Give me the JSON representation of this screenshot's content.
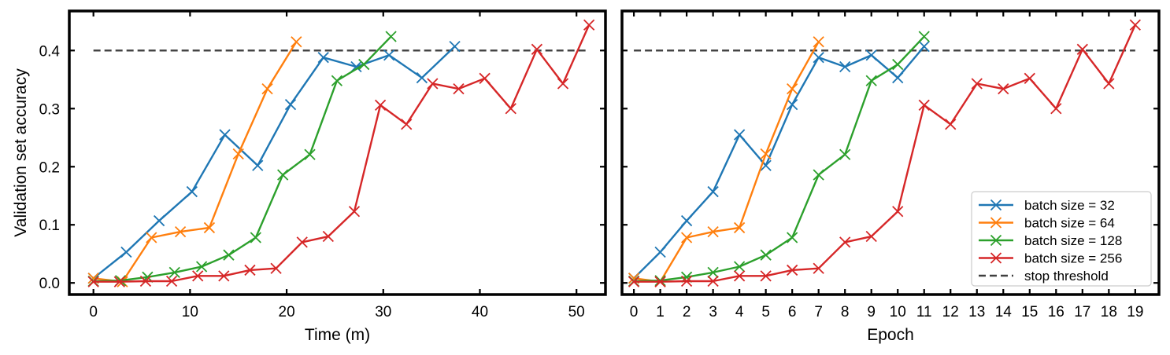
{
  "chart_data": [
    {
      "type": "line",
      "xlabel": "Time (m)",
      "ylabel": "Validation set accuracy",
      "xlim": [
        -2.5,
        53
      ],
      "ylim": [
        -0.02,
        0.468
      ],
      "xticks": [
        0,
        10,
        20,
        30,
        40,
        50
      ],
      "yticks": [
        0.0,
        0.1,
        0.2,
        0.3,
        0.4
      ],
      "threshold": 0.4,
      "threshold_range": [
        0,
        51
      ],
      "series": [
        {
          "name": "batch size = 32",
          "color": "#1f77b4",
          "x": [
            0,
            3.4,
            6.8,
            10.2,
            13.6,
            17.0,
            20.4,
            23.8,
            27.2,
            30.6,
            34.0,
            37.4
          ],
          "y": [
            0.008,
            0.053,
            0.107,
            0.157,
            0.255,
            0.202,
            0.307,
            0.388,
            0.372,
            0.392,
            0.353,
            0.407
          ]
        },
        {
          "name": "batch size = 64",
          "color": "#ff7f0e",
          "x": [
            0,
            3.0,
            6.0,
            9.0,
            12.0,
            15.0,
            18.0,
            21.0
          ],
          "y": [
            0.008,
            0.002,
            0.078,
            0.088,
            0.095,
            0.222,
            0.334,
            0.415
          ]
        },
        {
          "name": "batch size = 128",
          "color": "#2ca02c",
          "x": [
            0,
            2.8,
            5.6,
            8.4,
            11.2,
            14.0,
            16.8,
            19.6,
            22.4,
            25.2,
            28.0,
            30.8
          ],
          "y": [
            0.003,
            0.004,
            0.01,
            0.018,
            0.028,
            0.048,
            0.078,
            0.186,
            0.221,
            0.348,
            0.376,
            0.424
          ]
        },
        {
          "name": "batch size = 256",
          "color": "#d62728",
          "x": [
            0,
            2.7,
            5.4,
            8.1,
            10.8,
            13.5,
            16.2,
            18.9,
            21.6,
            24.3,
            27.0,
            29.7,
            32.4,
            35.1,
            37.8,
            40.5,
            43.2,
            45.9,
            48.6,
            51.3
          ],
          "y": [
            0.002,
            0.002,
            0.003,
            0.003,
            0.012,
            0.012,
            0.022,
            0.025,
            0.07,
            0.08,
            0.123,
            0.306,
            0.273,
            0.343,
            0.334,
            0.352,
            0.3,
            0.402,
            0.343,
            0.444
          ]
        }
      ]
    },
    {
      "type": "line",
      "xlabel": "Epoch",
      "ylabel": "",
      "xlim": [
        -0.45,
        19.9
      ],
      "ylim": [
        -0.02,
        0.468
      ],
      "xticks": [
        0,
        1,
        2,
        3,
        4,
        5,
        6,
        7,
        8,
        9,
        10,
        11,
        12,
        13,
        14,
        15,
        16,
        17,
        18,
        19
      ],
      "yticks": [
        0.0,
        0.1,
        0.2,
        0.3,
        0.4
      ],
      "threshold": 0.4,
      "threshold_range": [
        0,
        19
      ],
      "legend_position": "lower-right",
      "threshold_label": "stop threshold",
      "series": [
        {
          "name": "batch size = 32",
          "color": "#1f77b4",
          "x": [
            0,
            1,
            2,
            3,
            4,
            5,
            6,
            7,
            8,
            9,
            10,
            11
          ],
          "y": [
            0.008,
            0.053,
            0.107,
            0.157,
            0.255,
            0.202,
            0.307,
            0.388,
            0.372,
            0.392,
            0.353,
            0.407
          ]
        },
        {
          "name": "batch size = 64",
          "color": "#ff7f0e",
          "x": [
            0,
            1,
            2,
            3,
            4,
            5,
            6,
            7
          ],
          "y": [
            0.008,
            0.002,
            0.078,
            0.088,
            0.095,
            0.222,
            0.334,
            0.415
          ]
        },
        {
          "name": "batch size = 128",
          "color": "#2ca02c",
          "x": [
            0,
            1,
            2,
            3,
            4,
            5,
            6,
            7,
            8,
            9,
            10,
            11
          ],
          "y": [
            0.003,
            0.004,
            0.01,
            0.018,
            0.028,
            0.048,
            0.078,
            0.186,
            0.221,
            0.348,
            0.376,
            0.424
          ]
        },
        {
          "name": "batch size = 256",
          "color": "#d62728",
          "x": [
            0,
            1,
            2,
            3,
            4,
            5,
            6,
            7,
            8,
            9,
            10,
            11,
            12,
            13,
            14,
            15,
            16,
            17,
            18,
            19
          ],
          "y": [
            0.002,
            0.002,
            0.003,
            0.003,
            0.012,
            0.012,
            0.022,
            0.025,
            0.07,
            0.08,
            0.123,
            0.306,
            0.273,
            0.343,
            0.334,
            0.352,
            0.3,
            0.402,
            0.343,
            0.444
          ]
        }
      ]
    }
  ]
}
